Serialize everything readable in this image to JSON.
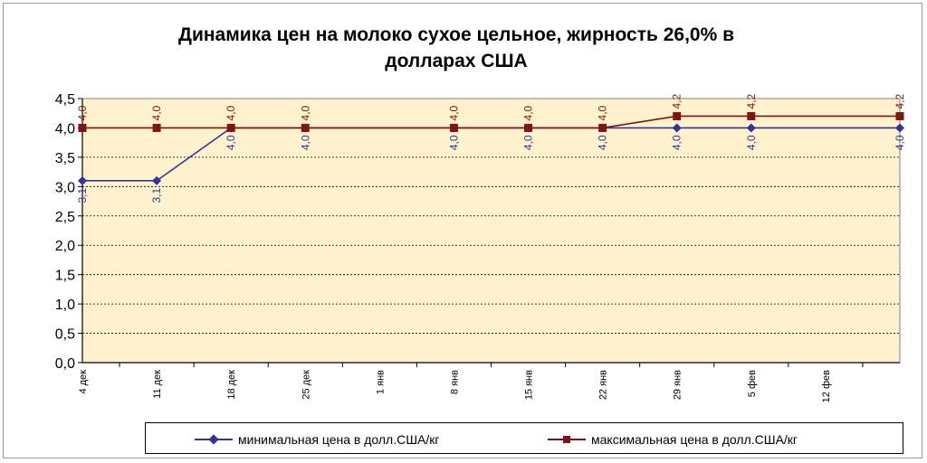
{
  "chart_data": {
    "type": "line",
    "title": "Динамика цен на молоко сухое цельное, жирность 26,0%  в долларах США",
    "title_lines": [
      "Динамика цен на молоко сухое цельное, жирность 26,0%  в",
      "долларах США"
    ],
    "xlabel": "",
    "ylabel": "",
    "categories": [
      "4 дек",
      "11 дек",
      "18 дек",
      "25 дек",
      "1 янв",
      "8 янв",
      "15 янв",
      "22 янв",
      "29 янв",
      "5 фев",
      "12 фев",
      ""
    ],
    "ylim": [
      0,
      4.5
    ],
    "yticks": [
      "0,0",
      "0,5",
      "1,0",
      "1,5",
      "2,0",
      "2,5",
      "3,0",
      "3,5",
      "4,0",
      "4,5"
    ],
    "grid": "horizontal dashed",
    "plot_background": "#FFF2CC",
    "legend_position": "bottom",
    "series": [
      {
        "name": "минимальная цена в долл.США/кг",
        "color": "#33339A",
        "marker": "diamond",
        "values": [
          3.1,
          3.1,
          4.0,
          4.0,
          null,
          4.0,
          4.0,
          4.0,
          4.0,
          4.0,
          null,
          4.0
        ],
        "labels": [
          "3,1",
          "3,1",
          "4,0",
          "4,0",
          "",
          "4,0",
          "4,0",
          "4,0",
          "4,0",
          "4,0",
          "",
          "4,0"
        ]
      },
      {
        "name": "максимальная цена в долл.США/кг",
        "color": "#7F1414",
        "marker": "square",
        "values": [
          4.0,
          4.0,
          4.0,
          4.0,
          null,
          4.0,
          4.0,
          4.0,
          4.2,
          4.2,
          null,
          4.2
        ],
        "labels": [
          "4,0",
          "4,0",
          "4,0",
          "4,0",
          "",
          "4,0",
          "4,0",
          "4,0",
          "4,2",
          "4,2",
          "",
          "4,2"
        ]
      }
    ]
  }
}
